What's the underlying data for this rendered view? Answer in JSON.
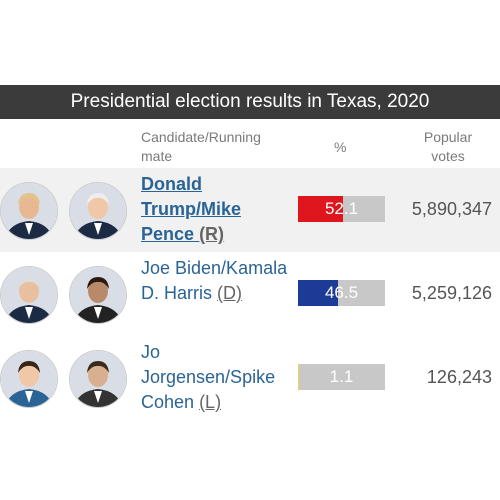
{
  "header": {
    "title": "Presidential election results in Texas, 2020"
  },
  "table": {
    "columns": [
      "Candidate/Running mate",
      "%",
      "Popular votes"
    ],
    "rows": [
      {
        "candidate": "Donald Trump/Mike Pence",
        "party": "(R)",
        "percent": 52.1,
        "votes": "5,890,347",
        "color": "#e0161e",
        "winner": true
      },
      {
        "candidate": "Joe Biden/Kamala D. Harris",
        "party": "(D)",
        "percent": 46.5,
        "votes": "5,259,126",
        "color": "#1b3b97",
        "winner": false
      },
      {
        "candidate": "Jo Jorgensen/Spike Cohen",
        "party": "(L)",
        "percent": 1.1,
        "votes": "126,243",
        "color": "#e9d84a",
        "winner": false
      }
    ]
  }
}
